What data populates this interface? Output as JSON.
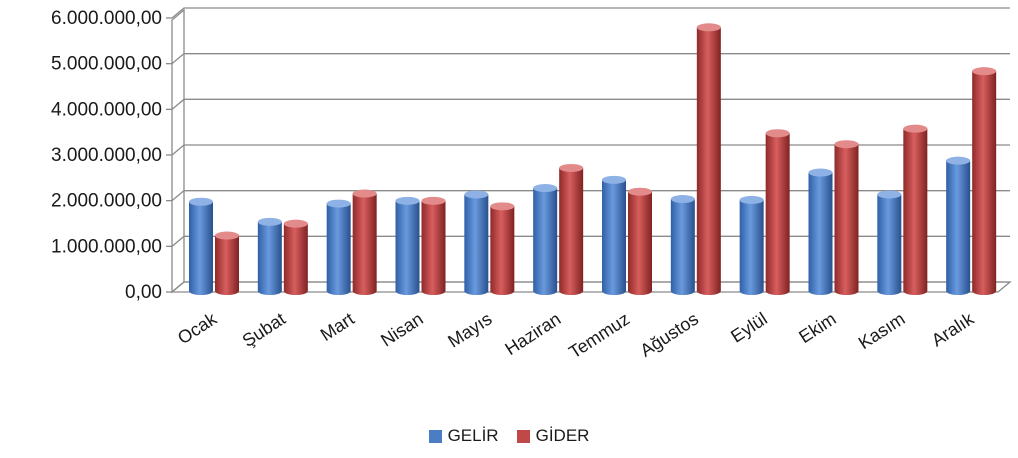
{
  "chart_data": {
    "type": "bar",
    "categories": [
      "Ocak",
      "Şubat",
      "Mart",
      "Nisan",
      "Mayıs",
      "Haziran",
      "Temmuz",
      "Ağustos",
      "Eylül",
      "Ekim",
      "Kasım",
      "Aralık"
    ],
    "series": [
      {
        "name": "GELİR",
        "color": "#4a7dc4",
        "values": [
          2020000,
          1580000,
          1980000,
          2040000,
          2180000,
          2320000,
          2500000,
          2080000,
          2060000,
          2660000,
          2180000,
          2920000
        ]
      },
      {
        "name": "GİDER",
        "color": "#c04848",
        "values": [
          1280000,
          1540000,
          2200000,
          2040000,
          1920000,
          2760000,
          2240000,
          5840000,
          3520000,
          3280000,
          3620000,
          4880000
        ]
      }
    ],
    "y_ticks": [
      "0,00",
      "1.000.000,00",
      "2.000.000,00",
      "3.000.000,00",
      "4.000.000,00",
      "5.000.000,00",
      "6.000.000,00"
    ],
    "ylim": [
      0,
      6000000
    ],
    "grid": true,
    "legend_position": "bottom",
    "style": "3d-cylinder"
  }
}
